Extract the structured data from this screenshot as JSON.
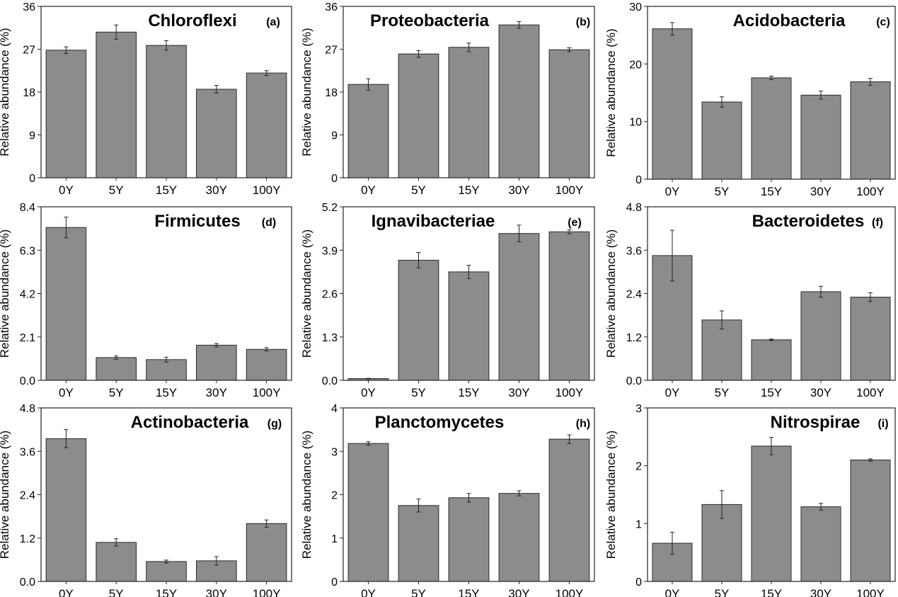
{
  "chart_data": [
    {
      "panel": "(a)",
      "title": "Chloroflexi",
      "type": "bar",
      "ylabel": "Relative abundance (%)",
      "ylim": [
        0,
        36
      ],
      "yticks": [
        0,
        9,
        18,
        27,
        36
      ],
      "yticklabels": [
        "0",
        "9",
        "18",
        "27",
        "36"
      ],
      "categories": [
        "0Y",
        "5Y",
        "15Y",
        "30Y",
        "100Y"
      ],
      "values": [
        26.8,
        30.6,
        27.8,
        18.6,
        22.0
      ],
      "errors": [
        0.7,
        1.5,
        1.0,
        0.8,
        0.5
      ]
    },
    {
      "panel": "(b)",
      "title": "Proteobacteria",
      "type": "bar",
      "ylabel": "Relative abundance (%)",
      "ylim": [
        0,
        36
      ],
      "yticks": [
        0,
        9,
        18,
        27,
        36
      ],
      "yticklabels": [
        "0",
        "9",
        "18",
        "27",
        "36"
      ],
      "categories": [
        "0Y",
        "5Y",
        "15Y",
        "30Y",
        "100Y"
      ],
      "values": [
        19.6,
        26.0,
        27.4,
        32.1,
        26.9
      ],
      "errors": [
        1.2,
        0.7,
        0.9,
        0.7,
        0.4
      ]
    },
    {
      "panel": "(c)",
      "title": "Acidobacteria",
      "type": "bar",
      "ylabel": "Relative abundance (%)",
      "ylim": [
        0,
        30
      ],
      "yticks": [
        0,
        10,
        20,
        30
      ],
      "yticklabels": [
        "0",
        "10",
        "20",
        "30"
      ],
      "categories": [
        "0Y",
        "5Y",
        "15Y",
        "30Y",
        "100Y"
      ],
      "values": [
        26.1,
        13.4,
        17.6,
        14.6,
        16.9
      ],
      "errors": [
        1.1,
        0.9,
        0.3,
        0.7,
        0.6
      ]
    },
    {
      "panel": "(d)",
      "title": "Firmicutes",
      "type": "bar",
      "ylabel": "Relative abundance (%)",
      "ylim": [
        0,
        8.4
      ],
      "yticks": [
        0,
        2.1,
        4.2,
        6.3,
        8.4
      ],
      "yticklabels": [
        "0.0",
        "2.1",
        "4.2",
        "6.3",
        "8.4"
      ],
      "categories": [
        "0Y",
        "5Y",
        "15Y",
        "30Y",
        "100Y"
      ],
      "values": [
        7.4,
        1.1,
        1.0,
        1.7,
        1.5
      ],
      "errors": [
        0.5,
        0.08,
        0.12,
        0.08,
        0.08
      ]
    },
    {
      "panel": "(e)",
      "title": "Ignavibacteriae",
      "type": "bar",
      "ylabel": "Relative abundance (%)",
      "ylim": [
        0,
        5.2
      ],
      "yticks": [
        0,
        1.3,
        2.6,
        3.9,
        5.2
      ],
      "yticklabels": [
        "0.0",
        "1.3",
        "2.6",
        "3.9",
        "5.2"
      ],
      "categories": [
        "0Y",
        "5Y",
        "15Y",
        "30Y",
        "100Y"
      ],
      "values": [
        0.05,
        3.6,
        3.25,
        4.4,
        4.45
      ],
      "errors": [
        0.01,
        0.23,
        0.2,
        0.25,
        0.06
      ]
    },
    {
      "panel": "(f)",
      "title": "Bacteroidetes",
      "type": "bar",
      "ylabel": "Relative abundance (%)",
      "ylim": [
        0,
        4.8
      ],
      "yticks": [
        0,
        1.2,
        2.4,
        3.6,
        4.8
      ],
      "yticklabels": [
        "0.0",
        "1.2",
        "2.4",
        "3.6",
        "4.8"
      ],
      "categories": [
        "0Y",
        "5Y",
        "15Y",
        "30Y",
        "100Y"
      ],
      "values": [
        3.45,
        1.67,
        1.12,
        2.45,
        2.3
      ],
      "errors": [
        0.7,
        0.25,
        0.02,
        0.15,
        0.12
      ]
    },
    {
      "panel": "(g)",
      "title": "Actinobacteria",
      "type": "bar",
      "ylabel": "Relative abundance (%)",
      "ylim": [
        0,
        4.8
      ],
      "yticks": [
        0,
        1.2,
        2.4,
        3.6,
        4.8
      ],
      "yticklabels": [
        "0.0",
        "1.2",
        "2.4",
        "3.6",
        "4.8"
      ],
      "categories": [
        "0Y",
        "5Y",
        "15Y",
        "30Y",
        "100Y"
      ],
      "values": [
        3.95,
        1.08,
        0.55,
        0.57,
        1.6
      ],
      "errors": [
        0.25,
        0.1,
        0.04,
        0.12,
        0.1
      ]
    },
    {
      "panel": "(h)",
      "title": "Planctomycetes",
      "type": "bar",
      "ylabel": "Relative abundance (%)",
      "ylim": [
        0,
        4
      ],
      "yticks": [
        0,
        1,
        2,
        3,
        4
      ],
      "yticklabels": [
        "0",
        "1",
        "2",
        "3",
        "4"
      ],
      "categories": [
        "0Y",
        "5Y",
        "15Y",
        "30Y",
        "100Y"
      ],
      "values": [
        3.18,
        1.75,
        1.93,
        2.03,
        3.28
      ],
      "errors": [
        0.04,
        0.15,
        0.1,
        0.06,
        0.1
      ]
    },
    {
      "panel": "(i)",
      "title": "Nitrospirae",
      "type": "bar",
      "ylabel": "Relative abundance (%)",
      "ylim": [
        0,
        3
      ],
      "yticks": [
        0,
        1,
        2,
        3
      ],
      "yticklabels": [
        "0",
        "1",
        "2",
        "3"
      ],
      "categories": [
        "0Y",
        "5Y",
        "15Y",
        "30Y",
        "100Y"
      ],
      "values": [
        0.66,
        1.33,
        2.34,
        1.29,
        2.1
      ],
      "errors": [
        0.19,
        0.24,
        0.15,
        0.06,
        0.02
      ]
    }
  ]
}
